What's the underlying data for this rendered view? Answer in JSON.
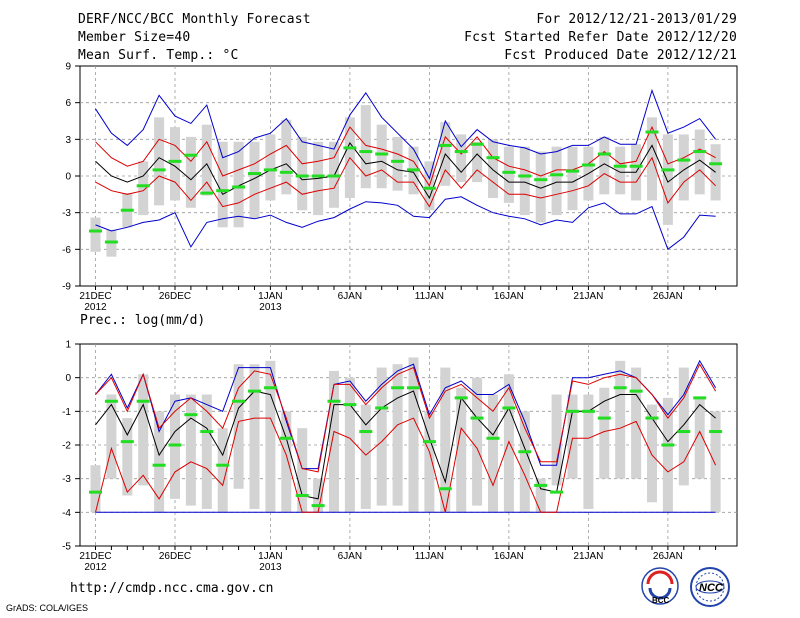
{
  "header": {
    "title": "DERF/NCC/BCC Monthly Forecast",
    "member_size": "Member Size=40",
    "variable": "Mean Surf. Temp.: °C",
    "forecast_period": "For 2012/12/21-2013/01/29",
    "fcst_started": "Fcst Started Refer Date 2012/12/20",
    "fcst_produced": "Fcst Produced Date 2012/12/21"
  },
  "footer": {
    "url": "http://cmdp.ncc.cma.gov.cn",
    "grads": "GrADS: COLA/IGES",
    "logo_bcc": "BCC",
    "logo_ncc": "NCC"
  },
  "colors": {
    "box": "#d3d3d3",
    "median": "#22dd22",
    "mean": "#000000",
    "sd": "#dd0000",
    "extreme": "#0000cc",
    "grid": "#999999"
  },
  "chart_data": [
    {
      "type": "box-line",
      "title": "Mean Surf. Temp.: °C",
      "ylim": [
        -9,
        9
      ],
      "yticks": [
        -9,
        -6,
        -3,
        0,
        3,
        6,
        9
      ],
      "xlabel_ticks": [
        {
          "day": 1,
          "label": "21DEC",
          "sublabel": "2012"
        },
        {
          "day": 6,
          "label": "26DEC",
          "sublabel": ""
        },
        {
          "day": 12,
          "label": "1JAN",
          "sublabel": "2013"
        },
        {
          "day": 17,
          "label": "6JAN",
          "sublabel": ""
        },
        {
          "day": 22,
          "label": "11JAN",
          "sublabel": ""
        },
        {
          "day": 27,
          "label": "16JAN",
          "sublabel": ""
        },
        {
          "day": 32,
          "label": "21JAN",
          "sublabel": ""
        },
        {
          "day": 37,
          "label": "26JAN",
          "sublabel": ""
        }
      ],
      "gridlines_x": [
        1,
        6,
        12,
        17,
        22,
        27,
        32,
        37
      ],
      "days": [
        1,
        2,
        3,
        4,
        5,
        6,
        7,
        8,
        9,
        10,
        11,
        12,
        13,
        14,
        15,
        16,
        17,
        18,
        19,
        20,
        21,
        22,
        23,
        24,
        25,
        26,
        27,
        28,
        29,
        30,
        31,
        32,
        33,
        34,
        35,
        36,
        37,
        38,
        39,
        40
      ],
      "box_low": [
        -6.2,
        -6.6,
        -4.2,
        -3.2,
        -2.4,
        -2.0,
        -2.6,
        -1.6,
        -4.2,
        -4.2,
        -3.5,
        -2.0,
        -1.5,
        -2.8,
        -3.2,
        -2.6,
        -1.8,
        -1.0,
        -1.0,
        -1.2,
        -1.5,
        -2.8,
        -0.8,
        -0.5,
        -0.5,
        -1.8,
        -2.2,
        -3.2,
        -3.8,
        -3.2,
        -2.8,
        -2.0,
        -1.5,
        -1.5,
        -2.0,
        -2.0,
        -4.0,
        -2.0,
        -1.5,
        -2.0
      ],
      "box_high": [
        -3.4,
        -4.4,
        -1.4,
        1.2,
        4.8,
        4.0,
        3.2,
        4.2,
        2.8,
        2.8,
        2.8,
        3.4,
        4.6,
        3.2,
        2.8,
        2.8,
        4.8,
        5.8,
        4.2,
        3.2,
        2.4,
        1.2,
        4.4,
        3.4,
        2.8,
        3.0,
        2.4,
        2.4,
        2.0,
        2.4,
        2.4,
        2.4,
        3.2,
        2.4,
        2.6,
        4.8,
        3.4,
        3.4,
        3.8,
        2.6
      ],
      "median": [
        -4.5,
        -5.4,
        -2.8,
        -0.8,
        0.5,
        1.2,
        1.7,
        -1.4,
        -1.2,
        -0.9,
        0.2,
        0.5,
        0.3,
        0.0,
        0.0,
        0.0,
        2.3,
        2.0,
        1.8,
        1.2,
        0.5,
        -1.0,
        2.5,
        2.0,
        2.6,
        1.5,
        0.3,
        0.0,
        -0.3,
        0.1,
        0.4,
        0.9,
        1.8,
        0.8,
        0.8,
        3.6,
        0.5,
        1.3,
        2.0,
        1.0
      ],
      "mean": [
        1.2,
        0.0,
        -0.5,
        0.0,
        1.5,
        0.8,
        -0.3,
        1.0,
        -1.5,
        -0.8,
        -0.2,
        0.5,
        1.0,
        -0.3,
        -0.2,
        0.0,
        2.7,
        1.0,
        1.2,
        0.5,
        0.3,
        -1.8,
        1.8,
        0.3,
        1.8,
        0.5,
        -0.5,
        -0.5,
        -1.0,
        -0.5,
        -0.5,
        0.2,
        1.0,
        0.3,
        0.3,
        2.5,
        -0.5,
        0.5,
        1.3,
        0.3
      ],
      "mean_plus_sd": [
        2.8,
        1.5,
        0.8,
        1.2,
        3.0,
        2.5,
        1.2,
        2.8,
        0.0,
        0.5,
        1.0,
        1.8,
        2.5,
        1.0,
        1.2,
        1.5,
        4.0,
        2.5,
        2.2,
        1.8,
        1.2,
        -0.8,
        3.2,
        1.8,
        3.2,
        1.5,
        0.8,
        0.5,
        0.0,
        0.5,
        0.5,
        1.0,
        2.0,
        1.0,
        1.2,
        4.0,
        1.0,
        1.5,
        2.2,
        1.5
      ],
      "mean_minus_sd": [
        -0.5,
        -1.2,
        -1.5,
        -1.2,
        0.0,
        -0.5,
        -2.0,
        -0.5,
        -2.5,
        -2.2,
        -1.5,
        -1.0,
        -0.5,
        -1.5,
        -1.2,
        -1.0,
        1.5,
        0.0,
        0.5,
        -0.5,
        -0.5,
        -2.5,
        0.5,
        -1.0,
        0.5,
        -0.5,
        -1.5,
        -1.5,
        -1.8,
        -1.5,
        -1.2,
        -0.8,
        0.2,
        -0.5,
        -0.5,
        1.5,
        -2.2,
        -0.5,
        0.5,
        -0.8
      ],
      "max": [
        5.5,
        3.5,
        2.5,
        3.8,
        6.6,
        4.9,
        4.3,
        5.8,
        1.5,
        2.0,
        3.1,
        3.5,
        4.7,
        2.8,
        2.5,
        2.2,
        5.0,
        6.8,
        4.8,
        3.5,
        2.2,
        -0.2,
        4.5,
        2.4,
        3.8,
        2.8,
        2.5,
        2.3,
        1.8,
        2.0,
        2.5,
        2.5,
        3.2,
        2.6,
        2.6,
        7.0,
        3.5,
        4.0,
        4.7,
        3.0
      ],
      "min": [
        -4.0,
        -4.5,
        -4.2,
        -3.8,
        -3.6,
        -3.0,
        -5.8,
        -3.8,
        -3.5,
        -3.3,
        -3.5,
        -3.2,
        -3.8,
        -4.2,
        -3.7,
        -3.4,
        -2.7,
        -2.1,
        -2.2,
        -2.4,
        -3.3,
        -3.4,
        -1.9,
        -1.7,
        -2.4,
        -3.0,
        -3.3,
        -3.5,
        -4.0,
        -3.6,
        -3.8,
        -2.6,
        -2.2,
        -3.1,
        -3.1,
        -2.5,
        -6.0,
        -5.0,
        -3.2,
        -3.3
      ]
    },
    {
      "type": "box-line",
      "title": "Prec.: log(mm/d)",
      "ylim": [
        -5,
        1
      ],
      "yticks": [
        -5,
        -4,
        -3,
        -2,
        -1,
        0,
        1
      ],
      "xlabel_ticks": [
        {
          "day": 1,
          "label": "21DEC",
          "sublabel": "2012"
        },
        {
          "day": 6,
          "label": "26DEC",
          "sublabel": ""
        },
        {
          "day": 12,
          "label": "1JAN",
          "sublabel": "2013"
        },
        {
          "day": 17,
          "label": "6JAN",
          "sublabel": ""
        },
        {
          "day": 22,
          "label": "11JAN",
          "sublabel": ""
        },
        {
          "day": 27,
          "label": "16JAN",
          "sublabel": ""
        },
        {
          "day": 32,
          "label": "21JAN",
          "sublabel": ""
        },
        {
          "day": 37,
          "label": "26JAN",
          "sublabel": ""
        }
      ],
      "gridlines_x": [
        1,
        6,
        12,
        17,
        22,
        27,
        32,
        37
      ],
      "days": [
        1,
        2,
        3,
        4,
        5,
        6,
        7,
        8,
        9,
        10,
        11,
        12,
        13,
        14,
        15,
        16,
        17,
        18,
        19,
        20,
        21,
        22,
        23,
        24,
        25,
        26,
        27,
        28,
        29,
        30,
        31,
        32,
        33,
        34,
        35,
        36,
        37,
        38,
        39,
        40
      ],
      "box_low": [
        -4.0,
        -3.0,
        -3.5,
        -3.2,
        -4.0,
        -3.6,
        -3.8,
        -3.9,
        -4.0,
        -3.3,
        -3.9,
        -4.0,
        -4.0,
        -4.0,
        -4.0,
        -4.0,
        -4.0,
        -3.9,
        -3.8,
        -3.8,
        -4.0,
        -4.0,
        -4.0,
        -4.0,
        -3.8,
        -4.0,
        -4.0,
        -4.0,
        -4.0,
        -3.2,
        -3.0,
        -3.9,
        -3.0,
        -3.0,
        -3.0,
        -3.7,
        -4.0,
        -3.2,
        -3.0,
        -4.0
      ],
      "box_high": [
        -2.6,
        -0.5,
        -1.2,
        0.1,
        -1.0,
        -0.5,
        -0.5,
        -0.5,
        -1.5,
        0.4,
        0.4,
        0.5,
        -1.0,
        -1.5,
        -3.0,
        0.2,
        0.0,
        -0.8,
        0.3,
        0.4,
        0.6,
        -1.0,
        0.3,
        -0.3,
        0.0,
        -0.5,
        0.1,
        -1.0,
        -3.0,
        -0.5,
        -0.5,
        -0.5,
        -0.3,
        0.5,
        0.3,
        -0.8,
        -0.6,
        0.3,
        -0.6,
        -1.0
      ],
      "median": [
        -3.4,
        -0.7,
        -1.9,
        -0.7,
        -2.6,
        -2.0,
        -1.1,
        -1.6,
        -2.6,
        -0.7,
        -0.4,
        -0.3,
        -1.8,
        -3.5,
        -3.8,
        -0.7,
        -0.8,
        -1.6,
        -0.9,
        -0.3,
        -0.3,
        -1.9,
        -3.3,
        -0.6,
        -1.2,
        -1.8,
        -0.9,
        -2.2,
        -3.2,
        -3.4,
        -1.0,
        -1.0,
        -1.2,
        -0.3,
        -0.4,
        -1.2,
        -2.0,
        -1.6,
        -0.6,
        -1.6
      ],
      "mean": [
        -1.4,
        -0.8,
        -1.7,
        -0.8,
        -2.3,
        -1.6,
        -1.2,
        -1.5,
        -2.3,
        -0.9,
        -0.4,
        -0.5,
        -1.8,
        -3.5,
        -3.6,
        -0.8,
        -0.8,
        -1.4,
        -0.9,
        -0.6,
        -0.4,
        -1.8,
        -3.1,
        -0.6,
        -1.2,
        -1.7,
        -0.9,
        -2.1,
        -3.3,
        -3.4,
        -1.0,
        -1.0,
        -0.7,
        -0.5,
        -0.5,
        -1.2,
        -1.9,
        -1.4,
        -0.8,
        -1.2
      ],
      "mean_plus_sd": [
        -0.5,
        0.0,
        -1.0,
        0.1,
        -1.5,
        -1.0,
        -0.6,
        -1.0,
        -1.5,
        -0.3,
        0.2,
        0.1,
        -1.2,
        -2.7,
        -2.8,
        -0.2,
        -0.2,
        -0.8,
        -0.3,
        0.1,
        0.3,
        -1.2,
        -0.4,
        -0.2,
        -0.6,
        -1.0,
        -0.3,
        -1.5,
        -2.5,
        -2.5,
        -0.1,
        -0.2,
        0.0,
        0.1,
        0.0,
        -0.5,
        -1.2,
        -0.6,
        0.4,
        -0.4
      ],
      "mean_minus_sd": [
        -4.0,
        -2.1,
        -3.4,
        -2.9,
        -3.6,
        -2.8,
        -2.5,
        -2.7,
        -3.2,
        -1.3,
        -1.2,
        -1.2,
        -2.3,
        -4.0,
        -4.0,
        -1.6,
        -1.8,
        -2.3,
        -1.9,
        -1.4,
        -1.2,
        -2.2,
        -4.0,
        -1.5,
        -2.1,
        -3.2,
        -1.9,
        -2.9,
        -4.0,
        -4.0,
        -1.8,
        -1.8,
        -1.6,
        -1.5,
        -1.3,
        -2.3,
        -2.8,
        -2.5,
        -1.6,
        -2.6
      ],
      "max": [
        -0.5,
        0.1,
        -0.9,
        0.1,
        -1.6,
        -0.7,
        -0.6,
        -0.8,
        -1.0,
        0.3,
        0.3,
        0.3,
        -1.3,
        -2.7,
        -2.7,
        -0.2,
        -0.1,
        -0.7,
        -0.2,
        0.2,
        0.4,
        -1.1,
        -0.3,
        -0.1,
        -0.5,
        -0.5,
        -0.2,
        -1.3,
        -2.6,
        -2.6,
        0.0,
        0.0,
        0.1,
        0.2,
        0.0,
        -0.5,
        -1.1,
        -0.5,
        0.5,
        -0.3
      ],
      "min": [
        -4.0,
        -4.0,
        -4.0,
        -4.0,
        -4.0,
        -4.0,
        -4.0,
        -4.0,
        -4.0,
        -4.0,
        -4.0,
        -4.0,
        -4.0,
        -4.0,
        -4.0,
        -4.0,
        -4.0,
        -4.0,
        -4.0,
        -4.0,
        -4.0,
        -4.0,
        -4.0,
        -4.0,
        -4.0,
        -4.0,
        -4.0,
        -4.0,
        -4.0,
        -4.0,
        -4.0,
        -4.0,
        -4.0,
        -4.0,
        -4.0,
        -4.0,
        -4.0,
        -4.0,
        -4.0,
        -4.0
      ]
    }
  ]
}
